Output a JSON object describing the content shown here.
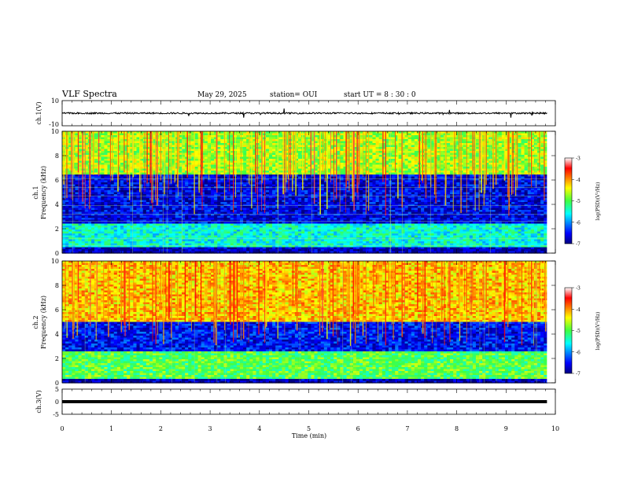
{
  "header": {
    "title": "VLF Spectra",
    "date": "May 29, 2025",
    "station": "station= OUI",
    "start": "start  UT =  8 : 30 : 0"
  },
  "chart_data": [
    {
      "type": "line",
      "panel": "ch1-waveform",
      "ylabel": "ch.1(V)",
      "ylim": [
        -10,
        10
      ],
      "yticks": [
        "10",
        "-10"
      ],
      "xlim": [
        0,
        10
      ],
      "series": [
        {
          "x": [
            0,
            9.83
          ],
          "y": [
            0,
            0
          ]
        }
      ],
      "color": "#000000"
    },
    {
      "type": "heatmap",
      "panel": "ch1-spectrogram",
      "ylabel": "ch.1\nFrequency (kHz)",
      "ylabel_lines": [
        "ch.1",
        "Frequency (kHz)"
      ],
      "ylim": [
        0,
        10
      ],
      "yticks": [
        "0",
        "2",
        "4",
        "6",
        "8",
        "10"
      ],
      "xlim": [
        0,
        10
      ],
      "data_extent_min": 9.83,
      "colorbar": {
        "label": "log(PSD)(V²/Hz)",
        "range": [
          -7,
          -3
        ],
        "ticks": [
          "-3",
          "-4",
          "-5",
          "-6",
          "-7"
        ]
      },
      "hum_lines_khz": [
        0.6,
        1.2,
        2.6,
        3.2,
        3.9,
        4.7,
        5.4,
        6.1
      ],
      "band_structure": [
        {
          "from": 0,
          "to": 0.5,
          "level": -6.8
        },
        {
          "from": 0.5,
          "to": 2.5,
          "level": -5.5
        },
        {
          "from": 2.5,
          "to": 6.5,
          "level": -6.6
        },
        {
          "from": 6.5,
          "to": 10,
          "level": -4.7
        }
      ]
    },
    {
      "type": "heatmap",
      "panel": "ch2-spectrogram",
      "ylabel_lines": [
        "ch.2",
        "Frequency (kHz)"
      ],
      "ylim": [
        0,
        10
      ],
      "yticks": [
        "0",
        "2",
        "4",
        "6",
        "8",
        "10"
      ],
      "xlim": [
        0,
        10
      ],
      "data_extent_min": 9.83,
      "colorbar": {
        "label": "log(PSD)(V²/Hz)",
        "range": [
          -7,
          -3
        ],
        "ticks": [
          "-3",
          "-4",
          "-5",
          "-6",
          "-7"
        ]
      },
      "band_structure": [
        {
          "from": 0,
          "to": 0.3,
          "level": -6.8
        },
        {
          "from": 0.3,
          "to": 2.6,
          "level": -5.0
        },
        {
          "from": 2.6,
          "to": 5.0,
          "level": -6.5
        },
        {
          "from": 5.0,
          "to": 10,
          "level": -4.2
        }
      ]
    },
    {
      "type": "line",
      "panel": "ch3-waveform",
      "ylabel": "ch.3(V)",
      "ylim": [
        -5,
        5
      ],
      "yticks": [
        "5",
        "0",
        "-5"
      ],
      "xlim": [
        0,
        10
      ],
      "series": [
        {
          "x": [
            0,
            9.83
          ],
          "y": [
            0,
            0
          ]
        }
      ],
      "color": "#000000"
    }
  ],
  "xaxis": {
    "label": "Time (min)",
    "range": [
      0,
      10
    ],
    "ticks": [
      "0",
      "1",
      "2",
      "3",
      "4",
      "5",
      "6",
      "7",
      "8",
      "9",
      "10"
    ]
  }
}
